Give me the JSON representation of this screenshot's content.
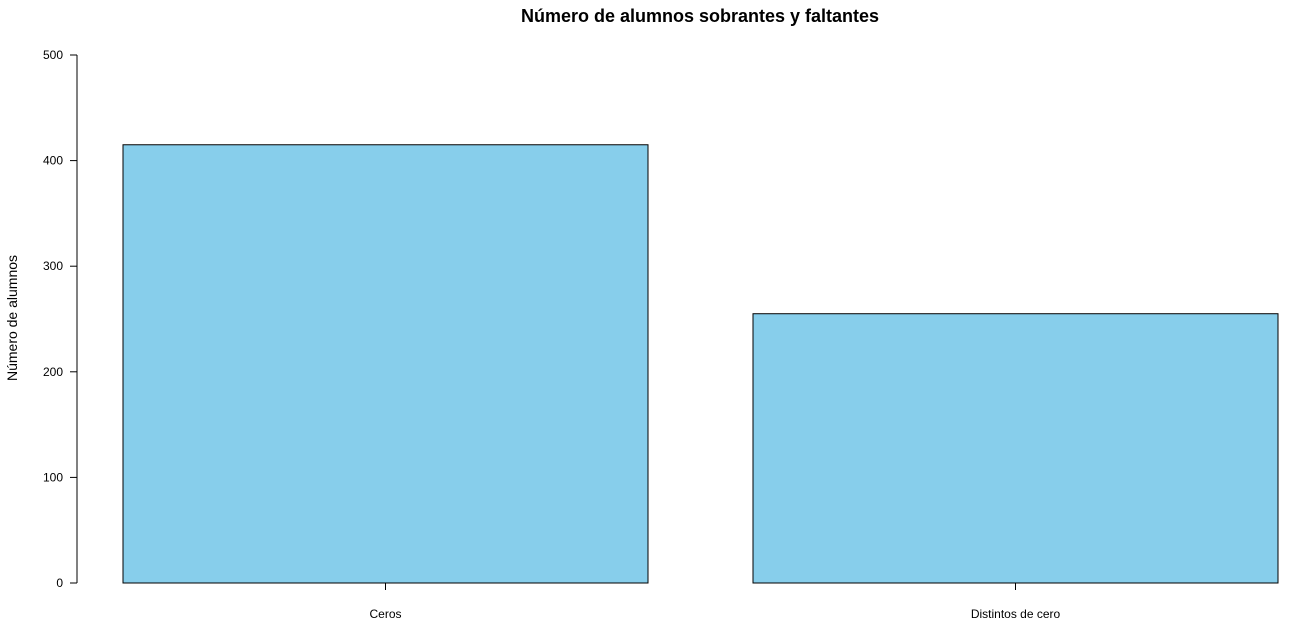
{
  "chart_data": {
    "type": "bar",
    "title": "Número de alumnos sobrantes y faltantes",
    "xlabel": "",
    "ylabel": "Número de alumnos",
    "categories": [
      "Ceros",
      "Distintos de cero"
    ],
    "values": [
      415,
      255
    ],
    "ylim": [
      0,
      500
    ],
    "yticks": [
      "0",
      "100",
      "200",
      "300",
      "400",
      "500"
    ],
    "bar_color": "#87CEEB",
    "grid": false,
    "legend": "none"
  }
}
